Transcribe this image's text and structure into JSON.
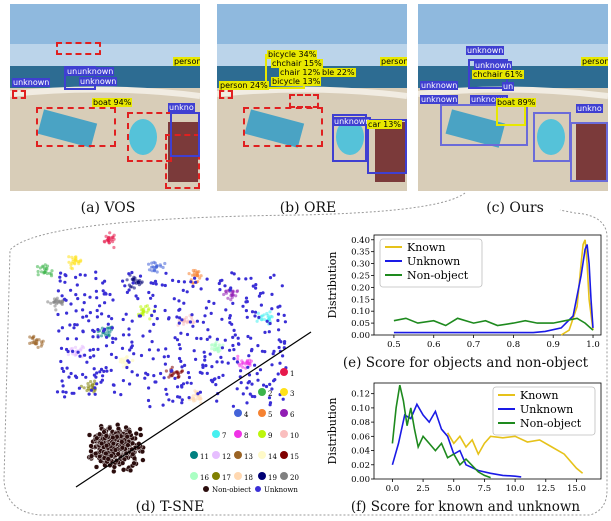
{
  "captions": {
    "a": "(a) VOS",
    "b": "(b) ORE",
    "c": "(c) Ours",
    "d": "(d) T-SNE",
    "e": "(e) Score for objects and non-object",
    "f": "(f) Score for known and unknown"
  },
  "detections": {
    "vos": [
      {
        "label": "unknown",
        "color": "#3f3fd1"
      },
      {
        "label": "unknown",
        "color": "#3f3fd1"
      },
      {
        "label": "unknown",
        "color": "#3f3fd1"
      },
      {
        "label": "person",
        "color": "#e8e800"
      },
      {
        "label": "boat 94%",
        "color": "#e8e800"
      },
      {
        "label": "unkno",
        "color": "#3f3fd1"
      },
      {
        "label": "un",
        "color": "#3f3fd1"
      }
    ],
    "ore": [
      {
        "label": "bicycle 34%",
        "color": "#e8e800"
      },
      {
        "label": "chchair 15%",
        "color": "#e8e800"
      },
      {
        "label": "chair 12%",
        "color": "#e8e800"
      },
      {
        "label": "ble 22%",
        "color": "#e8e800"
      },
      {
        "label": "bicycle 13%",
        "color": "#e8e800"
      },
      {
        "label": "person 24%",
        "color": "#e8e800"
      },
      {
        "label": "person",
        "color": "#e8e800"
      },
      {
        "label": "unknown",
        "color": "#3f3fd1"
      },
      {
        "label": "car 13%",
        "color": "#e8e800"
      }
    ],
    "ours": [
      {
        "label": "unknown",
        "color": "#3f3fd1"
      },
      {
        "label": "unknown",
        "color": "#3f3fd1"
      },
      {
        "label": "chchair 61%",
        "color": "#e8e800"
      },
      {
        "label": "unknown",
        "color": "#3f3fd1"
      },
      {
        "label": "unknown",
        "color": "#3f3fd1"
      },
      {
        "label": "unknown",
        "color": "#3f3fd1"
      },
      {
        "label": "person",
        "color": "#e8e800"
      },
      {
        "label": "boat 89%",
        "color": "#e8e800"
      },
      {
        "label": "unkno",
        "color": "#3f3fd1"
      },
      {
        "label": "un",
        "color": "#3f3fd1"
      }
    ]
  },
  "tsne_legend": {
    "classes": [
      "1",
      "2",
      "3",
      "4",
      "5",
      "6",
      "7",
      "8",
      "9",
      "10",
      "11",
      "12",
      "13",
      "14",
      "15",
      "16",
      "17",
      "18",
      "19",
      "20"
    ],
    "class_colors": [
      "#e6194b",
      "#3cb44b",
      "#ffe119",
      "#4363d8",
      "#f58231",
      "#911eb4",
      "#46f0f0",
      "#f032e6",
      "#bcf60c",
      "#fabebe",
      "#008080",
      "#e6beff",
      "#9a6324",
      "#fffac8",
      "#800000",
      "#aaffc3",
      "#808000",
      "#ffd8b1",
      "#000075",
      "#808080"
    ],
    "non_object": "Non-object",
    "unknown": "Unknown",
    "non_object_color": "#2b0d0d",
    "unknown_color": "#3a2fd6"
  },
  "chart_data": [
    {
      "type": "line",
      "caption": "(e) Score for objects and non-object",
      "ylabel": "Distribution",
      "xlim": [
        0.45,
        1.02
      ],
      "ylim": [
        0,
        0.42
      ],
      "xticks": [
        "0.5",
        "0.6",
        "0.7",
        "0.8",
        "0.9",
        "1.0"
      ],
      "yticks": [
        "0.00",
        "0.05",
        "0.10",
        "0.15",
        "0.20",
        "0.25",
        "0.30",
        "0.35",
        "0.40"
      ],
      "legend_position": "top-left",
      "series": [
        {
          "name": "Known",
          "color": "#e6c21a",
          "x": [
            0.92,
            0.94,
            0.96,
            0.97,
            0.975,
            0.98,
            0.985,
            0.99,
            1.0
          ],
          "y": [
            0.0,
            0.02,
            0.12,
            0.3,
            0.38,
            0.4,
            0.3,
            0.15,
            0.02
          ]
        },
        {
          "name": "Unknown",
          "color": "#1a1ae6",
          "x": [
            0.5,
            0.55,
            0.6,
            0.65,
            0.7,
            0.75,
            0.8,
            0.85,
            0.88,
            0.92,
            0.95,
            0.97,
            0.98,
            0.985,
            0.99,
            0.995,
            1.0
          ],
          "y": [
            0.01,
            0.01,
            0.01,
            0.01,
            0.01,
            0.01,
            0.01,
            0.01,
            0.015,
            0.03,
            0.08,
            0.25,
            0.36,
            0.38,
            0.3,
            0.15,
            0.03
          ]
        },
        {
          "name": "Non-object",
          "color": "#1e8a1e",
          "x": [
            0.5,
            0.53,
            0.56,
            0.6,
            0.63,
            0.66,
            0.7,
            0.73,
            0.76,
            0.8,
            0.83,
            0.86,
            0.9,
            0.93,
            0.96,
            0.98,
            1.0
          ],
          "y": [
            0.06,
            0.07,
            0.05,
            0.06,
            0.04,
            0.07,
            0.05,
            0.06,
            0.04,
            0.05,
            0.06,
            0.05,
            0.05,
            0.06,
            0.07,
            0.05,
            0.02
          ]
        }
      ]
    },
    {
      "type": "line",
      "caption": "(f) Score for known and unknown",
      "ylabel": "Distribution",
      "xlim": [
        -1.5,
        17
      ],
      "ylim": [
        0,
        0.135
      ],
      "xticks": [
        "0.0",
        "2.5",
        "5.0",
        "7.5",
        "10.0",
        "12.5",
        "15.0"
      ],
      "yticks": [
        "0.00",
        "0.02",
        "0.04",
        "0.06",
        "0.08",
        "0.10",
        "0.12"
      ],
      "legend_position": "top-right",
      "series": [
        {
          "name": "Known",
          "color": "#e6c21a",
          "x": [
            4.5,
            5.0,
            5.5,
            6.0,
            6.5,
            7.0,
            7.5,
            8.0,
            9.0,
            10.0,
            11.0,
            12.0,
            13.0,
            14.0,
            15.0,
            15.5
          ],
          "y": [
            0.065,
            0.05,
            0.06,
            0.045,
            0.055,
            0.035,
            0.05,
            0.06,
            0.058,
            0.06,
            0.052,
            0.055,
            0.045,
            0.035,
            0.015,
            0.008
          ]
        },
        {
          "name": "Unknown",
          "color": "#1a1ae6",
          "x": [
            0.0,
            0.5,
            1.0,
            1.5,
            2.0,
            2.5,
            3.0,
            3.5,
            4.0,
            4.5,
            5.0,
            5.5,
            6.0,
            7.0,
            8.0,
            9.0,
            10.0,
            10.5
          ],
          "y": [
            0.02,
            0.05,
            0.09,
            0.085,
            0.105,
            0.09,
            0.08,
            0.095,
            0.07,
            0.06,
            0.035,
            0.04,
            0.02,
            0.012,
            0.008,
            0.005,
            0.004,
            0.003
          ]
        },
        {
          "name": "Non-object",
          "color": "#1e8a1e",
          "x": [
            0.0,
            0.3,
            0.6,
            0.9,
            1.2,
            1.5,
            1.8,
            2.1,
            2.5,
            3.0,
            3.5,
            4.0,
            4.5,
            5.0,
            5.5,
            6.0,
            7.0,
            7.5,
            8.0
          ],
          "y": [
            0.05,
            0.1,
            0.132,
            0.11,
            0.075,
            0.1,
            0.07,
            0.045,
            0.06,
            0.05,
            0.04,
            0.05,
            0.03,
            0.035,
            0.02,
            0.028,
            0.01,
            0.005,
            0.002
          ]
        }
      ]
    }
  ]
}
